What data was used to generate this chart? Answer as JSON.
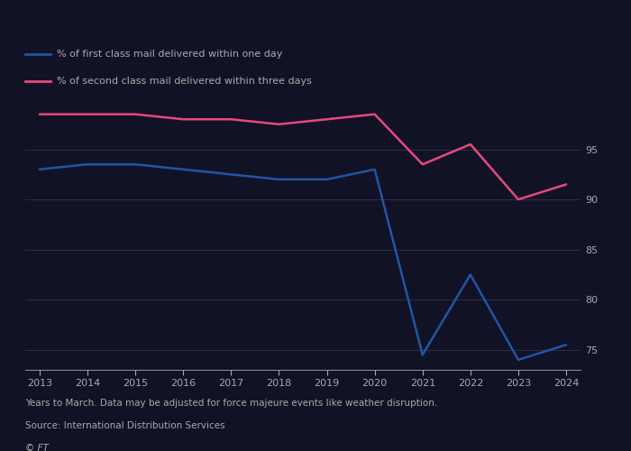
{
  "years": [
    2013,
    2014,
    2015,
    2016,
    2017,
    2018,
    2019,
    2020,
    2021,
    2022,
    2023,
    2024
  ],
  "first_class": [
    93.0,
    93.5,
    93.5,
    93.0,
    92.5,
    92.0,
    92.0,
    93.0,
    74.5,
    82.5,
    74.0,
    75.5
  ],
  "second_class": [
    98.5,
    98.5,
    98.5,
    98.0,
    98.0,
    97.5,
    98.0,
    98.5,
    93.5,
    95.5,
    90.0,
    91.5
  ],
  "first_class_color": "#2255a4",
  "second_class_color": "#e8497a",
  "background_color": "#121226",
  "grid_color": "#2e2e45",
  "text_color": "#aaaaaa",
  "legend_label_first": "% of first class mail delivered within one day",
  "legend_label_second": "% of second class mail delivered within three days",
  "footnote_line1": "Years to March. Data may be adjusted for force majeure events like weather disruption.",
  "footnote_line2": "Source: International Distribution Services",
  "copyright": "© FT",
  "yticks": [
    75,
    80,
    85,
    90,
    95
  ],
  "ylim": [
    73,
    100
  ],
  "xlim": [
    2012.7,
    2024.3
  ]
}
